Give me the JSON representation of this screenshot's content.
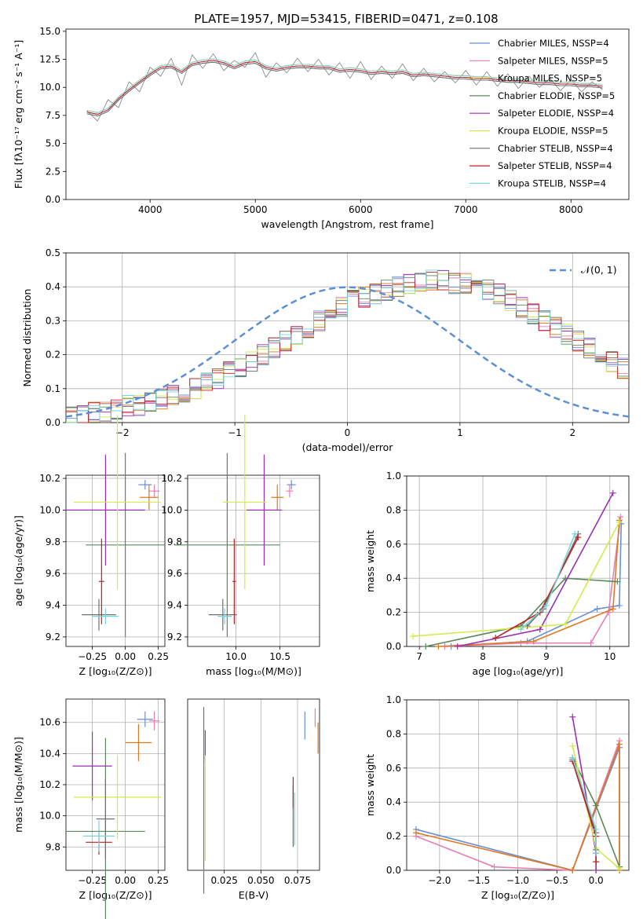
{
  "figure_title": "PLATE=1957, MJD=53415, FIBERID=0471, z=0.108",
  "series_styles": [
    {
      "name": "Chabrier MILES, N$_{SSP}$=4",
      "color": "#6a8fd8"
    },
    {
      "name": "Salpeter MILES, N$_{SSP}$=5",
      "color": "#e67fb6"
    },
    {
      "name": "Kroupa MILES, N$_{SSP}$=5",
      "color": "#e0781f"
    },
    {
      "name": "Chabrier ELODIE, N$_{SSP}$=5",
      "color": "#5a8a5a"
    },
    {
      "name": "Salpeter ELODIE, N$_{SSP}$=4",
      "color": "#9a2fb3"
    },
    {
      "name": "Kroupa ELODIE, N$_{SSP}$=5",
      "color": "#d4ea4a"
    },
    {
      "name": "Chabrier STELIB, N$_{SSP}$=4",
      "color": "#707070"
    },
    {
      "name": "Salpeter STELIB, N$_{SSP}$=4",
      "color": "#c02020"
    },
    {
      "name": "Kroupa STELIB, N$_{SSP}$=4",
      "color": "#78d4d8"
    }
  ],
  "chart_data": [
    {
      "id": "spectrum",
      "type": "line",
      "title": "PLATE=1957, MJD=53415, FIBERID=0471, z=0.108",
      "xlabel": "wavelength [Angstrom, rest frame]",
      "ylabel": "Flux [f$_\\lambda$10$^{-17}$ erg cm$^{-2}$ s$^{-1}$ A$^{-1}$]",
      "xlim": [
        3200,
        8550
      ],
      "ylim": [
        0,
        15.2
      ],
      "xticks": [
        4000,
        5000,
        6000,
        7000,
        8000
      ],
      "yticks": [
        0.0,
        2.5,
        5.0,
        7.5,
        10.0,
        12.5,
        15.0
      ],
      "legend": "upper right",
      "legend_labels": [
        "Chabrier MILES, N$_{SSP}$=4",
        "Salpeter MILES, N$_{SSP}$=5",
        "Kroupa MILES, N$_{SSP}$=5",
        "Chabrier ELODIE, N$_{SSP}$=5",
        "Salpeter ELODIE, N$_{SSP}$=4",
        "Kroupa ELODIE, N$_{SSP}$=5",
        "Chabrier STELIB, N$_{SSP}$=4",
        "Salpeter STELIB, N$_{SSP}$=4",
        "Kroupa STELIB, N$_{SSP}$=4"
      ],
      "x": [
        3400,
        3500,
        3600,
        3700,
        3800,
        3900,
        4000,
        4100,
        4200,
        4300,
        4400,
        4500,
        4600,
        4700,
        4800,
        4900,
        5000,
        5100,
        5200,
        5300,
        5400,
        5500,
        5600,
        5700,
        5800,
        5900,
        6000,
        6100,
        6200,
        6300,
        6400,
        6500,
        6600,
        6700,
        6800,
        6900,
        7000,
        7100,
        7200,
        7300,
        7400,
        7500,
        7600,
        7700,
        7800,
        7900,
        8000,
        8100,
        8200,
        8300
      ],
      "y_model": [
        7.8,
        7.6,
        8.0,
        9.0,
        9.8,
        10.5,
        11.2,
        11.8,
        11.9,
        11.4,
        12.1,
        12.3,
        12.4,
        12.2,
        11.8,
        12.2,
        12.3,
        11.8,
        11.6,
        11.8,
        11.9,
        11.9,
        11.8,
        11.8,
        11.5,
        11.6,
        11.5,
        11.3,
        11.4,
        11.3,
        11.4,
        11.1,
        11.2,
        11.1,
        11.0,
        10.9,
        10.9,
        10.8,
        10.8,
        10.7,
        10.6,
        10.6,
        10.5,
        10.4,
        10.4,
        10.3,
        10.3,
        10.2,
        10.2,
        10.1
      ],
      "y_data": [
        7.9,
        7.0,
        8.9,
        8.2,
        10.5,
        9.6,
        11.8,
        11.0,
        12.6,
        10.2,
        12.9,
        11.7,
        13.0,
        11.5,
        12.4,
        11.8,
        13.1,
        10.9,
        12.2,
        11.3,
        12.6,
        11.4,
        12.5,
        11.1,
        12.2,
        10.8,
        12.3,
        10.7,
        11.9,
        10.8,
        12.1,
        10.6,
        11.7,
        10.5,
        11.4,
        10.4,
        11.5,
        10.2,
        11.4,
        10.1,
        11.2,
        9.9,
        11.0,
        10.0,
        10.8,
        9.7,
        10.7,
        9.6,
        10.5,
        9.8
      ]
    },
    {
      "id": "residuals",
      "type": "line",
      "xlabel": "(data-model)/error",
      "ylabel": "Normed distribution",
      "xlim": [
        -2.5,
        2.5
      ],
      "ylim": [
        0,
        0.5
      ],
      "xticks": [
        -2,
        -1,
        0,
        1,
        2
      ],
      "yticks": [
        0.0,
        0.1,
        0.2,
        0.3,
        0.4,
        0.5
      ],
      "legend": "upper right",
      "legend_labels": [
        "$\\mathcal{N}(0, 1)$"
      ],
      "bin_edges_start": -2.5,
      "bin_width": 0.1,
      "hist_mean": [
        0.02,
        0.02,
        0.03,
        0.03,
        0.04,
        0.05,
        0.05,
        0.06,
        0.07,
        0.08,
        0.09,
        0.1,
        0.12,
        0.13,
        0.15,
        0.16,
        0.18,
        0.2,
        0.22,
        0.24,
        0.26,
        0.28,
        0.3,
        0.32,
        0.34,
        0.36,
        0.37,
        0.38,
        0.39,
        0.4,
        0.41,
        0.41,
        0.42,
        0.42,
        0.41,
        0.41,
        0.4,
        0.39,
        0.38,
        0.36,
        0.34,
        0.32,
        0.3,
        0.28,
        0.26,
        0.24,
        0.22,
        0.2,
        0.18,
        0.16
      ],
      "normal_curve": "N(0,1)"
    },
    {
      "id": "age-vs-Z",
      "type": "scatter",
      "xlabel": "Z [log$_{10}$(Z/Z$_\\odot$)]",
      "ylabel": "age  [log$_{10}$(age/yr)]",
      "xlim": [
        -0.45,
        0.3
      ],
      "ylim": [
        9.14,
        10.22
      ],
      "xticks": [
        -0.25,
        0.0,
        0.25
      ],
      "yticks": [
        9.2,
        9.4,
        9.6,
        9.8,
        10.0,
        10.2
      ],
      "points": [
        {
          "x": 0.15,
          "y": 10.16,
          "xerr": 0.05,
          "yerr": 0.03
        },
        {
          "x": 0.22,
          "y": 10.12,
          "xerr": 0.04,
          "yerr": 0.04
        },
        {
          "x": 0.18,
          "y": 10.08,
          "xerr": 0.07,
          "yerr": 0.08
        },
        {
          "x": 0.0,
          "y": 9.78,
          "xerr": 0.3,
          "yerr": 0.58
        },
        {
          "x": -0.15,
          "y": 10.0,
          "xerr": 0.3,
          "yerr": 0.35
        },
        {
          "x": -0.06,
          "y": 10.05,
          "xerr": 0.33,
          "yerr": 0.55
        },
        {
          "x": -0.2,
          "y": 9.34,
          "xerr": 0.13,
          "yerr": 0.1
        },
        {
          "x": -0.18,
          "y": 9.55,
          "xerr": 0.02,
          "yerr": 0.27
        },
        {
          "x": -0.15,
          "y": 9.33,
          "xerr": 0.1,
          "yerr": 0.05
        }
      ]
    },
    {
      "id": "age-vs-mass",
      "type": "scatter",
      "xlabel": "mass [log$_{10}$(M/M$_\\odot$)]",
      "ylabel": "",
      "xlim": [
        9.45,
        10.95
      ],
      "ylim": [
        9.14,
        10.22
      ],
      "xticks": [
        10.0,
        10.5
      ],
      "yticks": [
        9.2,
        9.4,
        9.6,
        9.8,
        10.0,
        10.2
      ],
      "points": [
        {
          "x": 10.63,
          "y": 10.16,
          "xerr": 0.05,
          "yerr": 0.03
        },
        {
          "x": 10.61,
          "y": 10.12,
          "xerr": 0.04,
          "yerr": 0.04
        },
        {
          "x": 10.47,
          "y": 10.08,
          "xerr": 0.07,
          "yerr": 0.08
        },
        {
          "x": 9.9,
          "y": 9.78,
          "xerr": 0.6,
          "yerr": 0.58
        },
        {
          "x": 10.32,
          "y": 10.0,
          "xerr": 0.2,
          "yerr": 0.35
        },
        {
          "x": 10.1,
          "y": 10.05,
          "xerr": 0.25,
          "yerr": 0.55
        },
        {
          "x": 9.85,
          "y": 9.34,
          "xerr": 0.16,
          "yerr": 0.1
        },
        {
          "x": 9.98,
          "y": 9.55,
          "xerr": 0.02,
          "yerr": 0.27
        },
        {
          "x": 9.87,
          "y": 9.33,
          "xerr": 0.08,
          "yerr": 0.05
        }
      ]
    },
    {
      "id": "mass-weight-vs-age",
      "type": "line",
      "xlabel": "age  [log$_{10}$(age/yr)]",
      "ylabel": "mass weight",
      "xlim": [
        6.8,
        10.3
      ],
      "ylim": [
        0,
        1.0
      ],
      "xticks": [
        7,
        8,
        9,
        10
      ],
      "yticks": [
        0.0,
        0.2,
        0.4,
        0.6,
        0.8,
        1.0
      ],
      "series": [
        {
          "x": [
            7.5,
            8.7,
            9.8,
            10.15,
            10.18
          ],
          "y": [
            0.0,
            0.03,
            0.22,
            0.24,
            0.72
          ]
        },
        {
          "x": [
            7.4,
            8.6,
            9.7,
            9.98,
            10.17
          ],
          "y": [
            0.0,
            0.02,
            0.02,
            0.2,
            0.76
          ]
        },
        {
          "x": [
            7.3,
            8.8,
            10.05,
            10.15
          ],
          "y": [
            0.0,
            0.03,
            0.22,
            0.74
          ]
        },
        {
          "x": [
            7.1,
            8.6,
            9.3,
            10.12
          ],
          "y": [
            0.0,
            0.12,
            0.4,
            0.38
          ]
        },
        {
          "x": [
            7.6,
            8.9,
            10.05
          ],
          "y": [
            0.0,
            0.1,
            0.9
          ]
        },
        {
          "x": [
            6.9,
            9.3,
            10.15
          ],
          "y": [
            0.06,
            0.13,
            0.73
          ]
        },
        {
          "x": [
            8.7,
            8.95,
            9.5
          ],
          "y": [
            0.12,
            0.22,
            0.66
          ]
        },
        {
          "x": [
            8.2,
            8.9,
            9.5
          ],
          "y": [
            0.05,
            0.2,
            0.64
          ]
        },
        {
          "x": [
            8.6,
            9.0,
            9.45
          ],
          "y": [
            0.1,
            0.24,
            0.66
          ]
        }
      ]
    },
    {
      "id": "mass-vs-Z",
      "type": "scatter",
      "xlabel": "Z [log$_{10}$(Z/Z$_\\odot$)]",
      "ylabel": "mass [log$_{10}$(M/M$_\\odot$)]",
      "xlim": [
        -0.45,
        0.3
      ],
      "ylim": [
        9.65,
        10.75
      ],
      "xticks": [
        -0.25,
        0.0,
        0.25
      ],
      "yticks": [
        9.8,
        10.0,
        10.2,
        10.4,
        10.6
      ],
      "points": [
        {
          "x": 0.15,
          "y": 10.62,
          "xerr": 0.06,
          "yerr": 0.05
        },
        {
          "x": 0.22,
          "y": 10.61,
          "xerr": 0.04,
          "yerr": 0.06
        },
        {
          "x": 0.1,
          "y": 10.47,
          "xerr": 0.1,
          "yerr": 0.12
        },
        {
          "x": -0.15,
          "y": 9.9,
          "xerr": 0.3,
          "yerr": 0.6
        },
        {
          "x": -0.25,
          "y": 10.32,
          "xerr": 0.15,
          "yerr": 0.22
        },
        {
          "x": -0.06,
          "y": 10.12,
          "xerr": 0.33,
          "yerr": 0.27
        },
        {
          "x": -0.15,
          "y": 9.98,
          "xerr": 0.07,
          "yerr": 0.26
        },
        {
          "x": -0.2,
          "y": 9.83,
          "xerr": 0.1,
          "yerr": 0.08
        },
        {
          "x": -0.2,
          "y": 9.87,
          "xerr": 0.12,
          "yerr": 0.1
        }
      ]
    },
    {
      "id": "mass-vs-EBV",
      "type": "scatter",
      "xlabel": "E(B-V)",
      "ylabel": "",
      "xlim": [
        0.0,
        0.09
      ],
      "ylim": [
        9.65,
        10.75
      ],
      "xticks": [
        0.025,
        0.05,
        0.075
      ],
      "points": [
        {
          "x": 0.08,
          "y": 10.58,
          "yerr": 0.09
        },
        {
          "x": 0.087,
          "y": 10.63,
          "yerr": 0.06
        },
        {
          "x": 0.089,
          "y": 10.5,
          "yerr": 0.1
        },
        {
          "x": 0.011,
          "y": 10.1,
          "yerr": 0.6
        },
        {
          "x": 0.012,
          "y": 10.45,
          "yerr": 0.1
        },
        {
          "x": 0.012,
          "y": 10.05,
          "yerr": 0.34
        },
        {
          "x": 0.072,
          "y": 10.0,
          "yerr": 0.2
        },
        {
          "x": 0.072,
          "y": 10.15,
          "yerr": 0.1
        },
        {
          "x": 0.073,
          "y": 9.98,
          "yerr": 0.17
        }
      ]
    },
    {
      "id": "mass-weight-vs-Z",
      "type": "line",
      "xlabel": "Z [log$_{10}$(Z/Z$_\\odot$)]",
      "ylabel": "mass weight",
      "xlim": [
        -2.42,
        0.42
      ],
      "ylim": [
        0,
        1.0
      ],
      "xticks": [
        -2.0,
        -1.5,
        -1.0,
        -0.5,
        0.0
      ],
      "yticks": [
        0.0,
        0.2,
        0.4,
        0.6,
        0.8,
        1.0
      ],
      "series": [
        {
          "x": [
            -2.3,
            -0.3,
            0.3,
            0.3
          ],
          "y": [
            0.24,
            0.0,
            0.72,
            0.0
          ]
        },
        {
          "x": [
            -2.3,
            -1.3,
            -0.3,
            0.3
          ],
          "y": [
            0.2,
            0.02,
            0.0,
            0.76
          ]
        },
        {
          "x": [
            -2.3,
            -0.3,
            0.3,
            0.3
          ],
          "y": [
            0.22,
            0.0,
            0.74,
            0.0
          ]
        },
        {
          "x": [
            -0.3,
            0.0,
            0.3
          ],
          "y": [
            0.66,
            0.38,
            0.02
          ]
        },
        {
          "x": [
            -0.3,
            0.0,
            0.0
          ],
          "y": [
            0.9,
            0.1,
            0.0
          ]
        },
        {
          "x": [
            -0.3,
            0.0,
            0.3
          ],
          "y": [
            0.73,
            0.13,
            0.01
          ]
        },
        {
          "x": [
            -0.3,
            0.0,
            0.0
          ],
          "y": [
            0.65,
            0.22,
            0.12
          ]
        },
        {
          "x": [
            -0.3,
            0.0,
            0.0
          ],
          "y": [
            0.64,
            0.2,
            0.05
          ]
        },
        {
          "x": [
            -0.3,
            0.0,
            0.0
          ],
          "y": [
            0.66,
            0.24,
            0.1
          ]
        }
      ]
    }
  ]
}
